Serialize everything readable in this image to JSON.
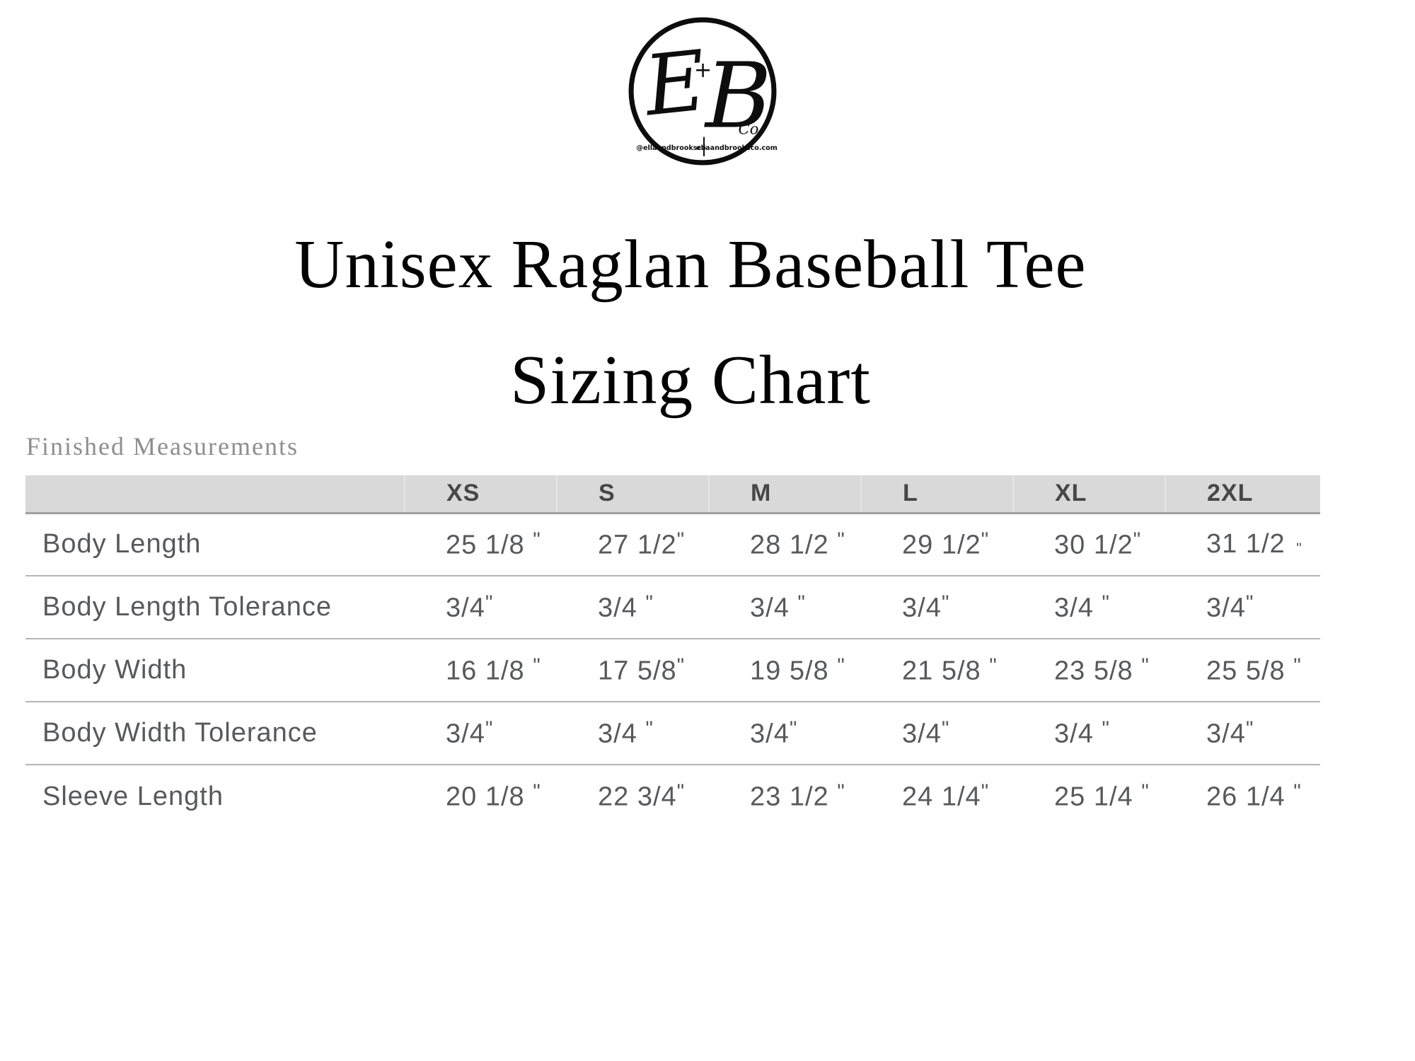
{
  "logo": {
    "monogram_left": "E",
    "monogram_plus": "+",
    "monogram_right": "B",
    "monogram_co": "Co.",
    "footer_left": "@ellaandbrooksco",
    "footer_right": "ellaandbrooksco.com"
  },
  "title": {
    "line1": "Unisex Raglan Baseball Tee",
    "line2": "Sizing Chart"
  },
  "section_label": "Finished Measurements",
  "table": {
    "columns": [
      "",
      "XS",
      "S",
      "M",
      "L",
      "XL",
      "2XL"
    ],
    "rows": [
      {
        "label": "Body Length",
        "values": [
          "25 1/8 \"",
          "27 1/2\"",
          "28 1/2 \"",
          "29 1/2\"",
          "30 1/2\"",
          "31 1/2 \""
        ],
        "marks": [
          "up",
          "up",
          "up",
          "up",
          "up",
          "low"
        ]
      },
      {
        "label": "Body Length Tolerance",
        "values": [
          "3/4\"",
          "3/4 \"",
          "3/4 \"",
          "3/4\"",
          "3/4 \"",
          "3/4\""
        ]
      },
      {
        "label": "Body Width",
        "values": [
          "16 1/8 \"",
          "17 5/8\"",
          "19 5/8 \"",
          "21 5/8 \"",
          "23 5/8 \"",
          "25 5/8 \""
        ]
      },
      {
        "label": "Body Width Tolerance",
        "values": [
          "3/4\"",
          "3/4 \"",
          "3/4\"",
          "3/4\"",
          "3/4 \"",
          "3/4\""
        ]
      },
      {
        "label": "Sleeve Length",
        "values": [
          "20 1/8 \"",
          "22 3/4\"",
          "23 1/2 \"",
          "24 1/4\"",
          "25 1/4 \"",
          "26 1/4 \""
        ]
      }
    ]
  },
  "colors": {
    "page_bg": "#ffffff",
    "header_bg": "#d9d9d9",
    "header_text": "#474747",
    "cell_text": "#58595b",
    "row_divider": "#b5b5b5",
    "header_divider": "#a0a0a0",
    "title_text": "#030303",
    "section_label_text": "#8e8e8e",
    "logo_ink": "#0d0d0d"
  }
}
